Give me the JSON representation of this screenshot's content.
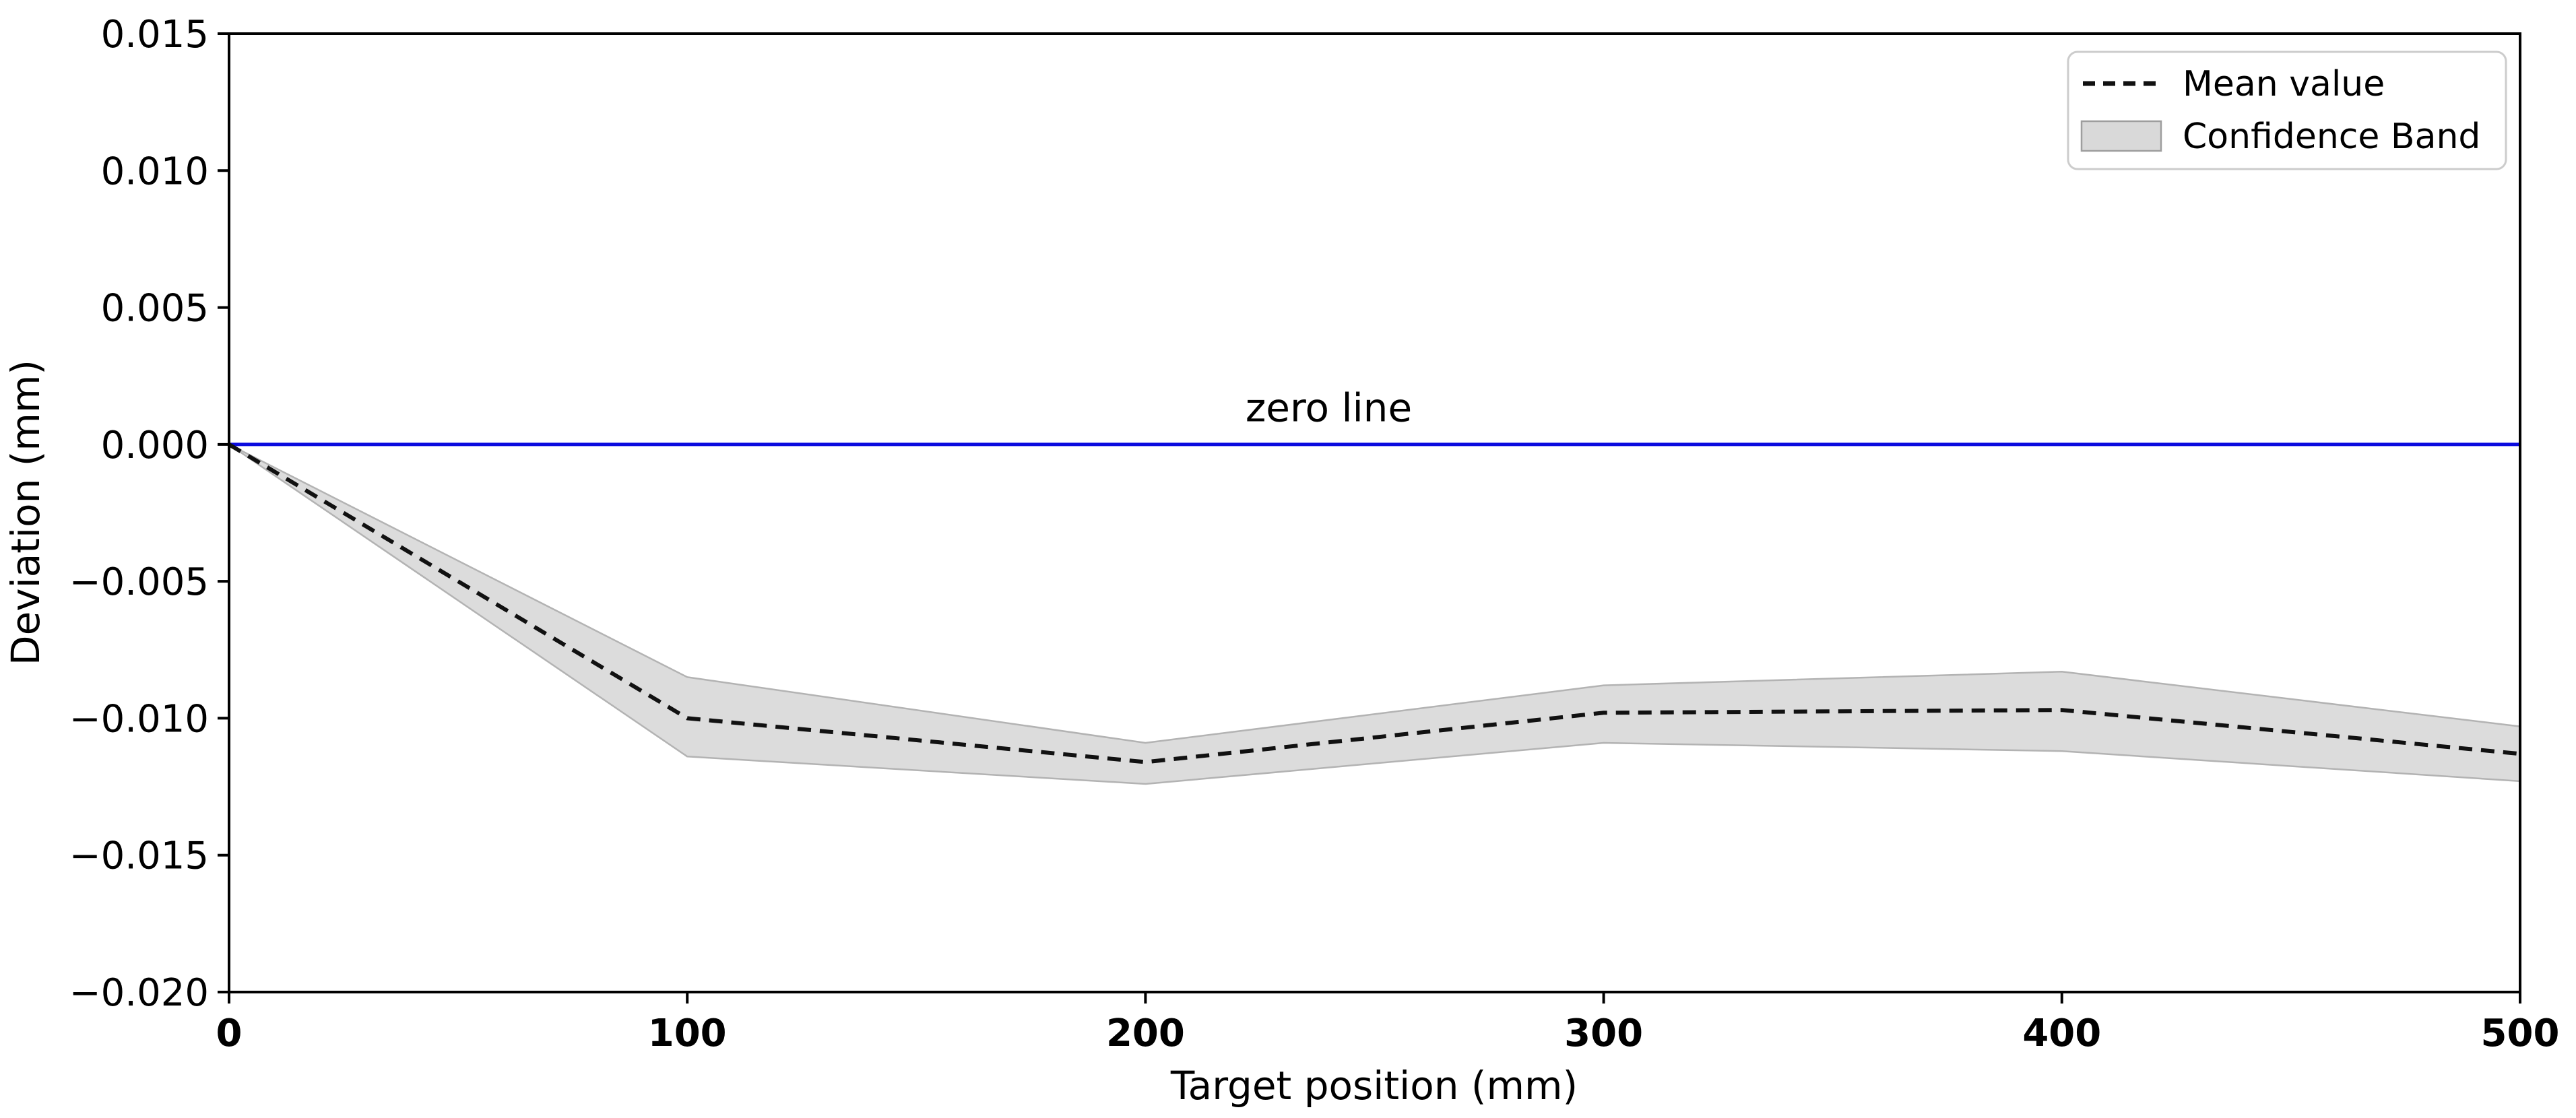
{
  "figure": {
    "background": "#ffffff"
  },
  "chart_data": {
    "type": "line",
    "title": "",
    "xlabel": "Target position (mm)",
    "ylabel": "Deviation (mm)",
    "xlim": [
      0,
      500
    ],
    "ylim": [
      -0.02,
      0.015
    ],
    "grid": false,
    "x_ticks": [
      0,
      100,
      200,
      300,
      400,
      500
    ],
    "x_tick_labels": [
      "0",
      "100",
      "200",
      "300",
      "400",
      "500"
    ],
    "y_ticks": [
      0.015,
      0.01,
      0.005,
      0.0,
      -0.005,
      -0.01,
      -0.015,
      -0.02
    ],
    "y_tick_labels": [
      "0.015",
      "0.010",
      "0.005",
      "0.000",
      "−0.005",
      "−0.010",
      "−0.015",
      "−0.020"
    ],
    "zero_line": {
      "y": 0.0,
      "color": "#0b0bdf"
    },
    "annotation": {
      "text": "zero line",
      "x": 240,
      "y": 0.00085
    },
    "series": [
      {
        "name": "Mean value",
        "type": "dashed-line",
        "color": "#111111",
        "x": [
          0,
          100,
          200,
          300,
          400,
          500
        ],
        "y": [
          0.0,
          -0.01,
          -0.0116,
          -0.0098,
          -0.0097,
          -0.0113
        ]
      },
      {
        "name": "Confidence Band",
        "type": "band",
        "fill": "#dcdcdc",
        "edge": "#b3b3b3",
        "x": [
          0,
          100,
          200,
          300,
          400,
          500
        ],
        "upper": [
          0.0,
          -0.0085,
          -0.0109,
          -0.0088,
          -0.0083,
          -0.0103
        ],
        "lower": [
          0.0,
          -0.0114,
          -0.0124,
          -0.0109,
          -0.0112,
          -0.0123
        ]
      }
    ],
    "legend": {
      "position": "upper right",
      "entries": [
        {
          "label": "Mean value",
          "swatch": "dashed-line"
        },
        {
          "label": "Confidence Band",
          "swatch": "filled-box"
        }
      ]
    }
  }
}
